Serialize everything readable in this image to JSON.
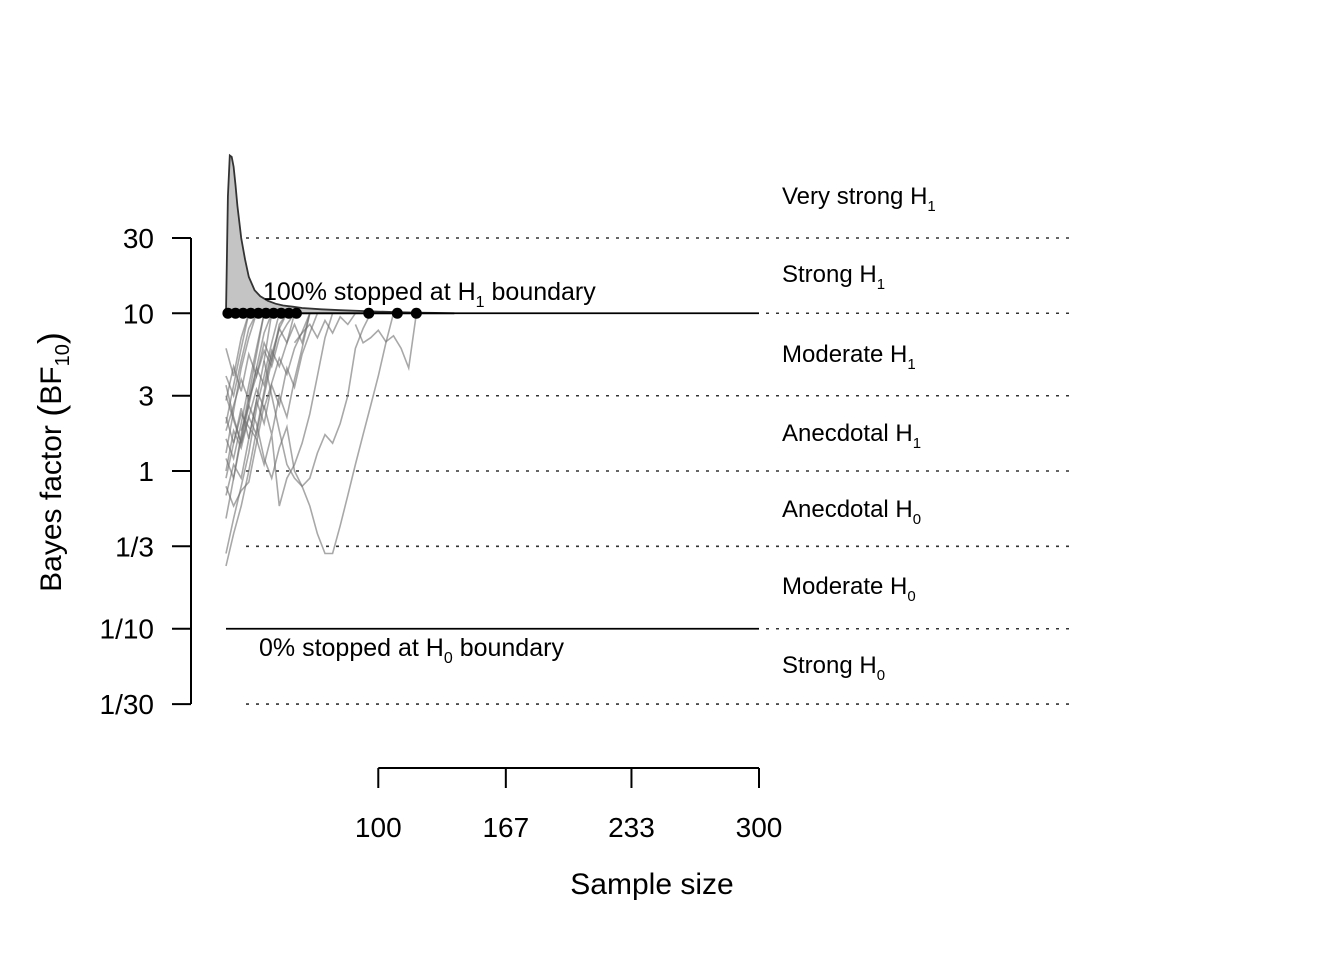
{
  "chart_data": {
    "type": "line",
    "xlabel": "Sample size",
    "ylabel": {
      "main": "Bayes factor ",
      "sym": "BF",
      "sub": "10"
    },
    "xlim": [
      50,
      300
    ],
    "x_ticks": [
      {
        "value": 100,
        "label": "100"
      },
      {
        "value": 167,
        "label": "167"
      },
      {
        "value": 233,
        "label": "233"
      },
      {
        "value": 300,
        "label": "300"
      }
    ],
    "ylim_log": [
      0.0333,
      30
    ],
    "y_ticks": [
      {
        "value": 30,
        "label": "30"
      },
      {
        "value": 10,
        "label": "10"
      },
      {
        "value": 3,
        "label": "3"
      },
      {
        "value": 1,
        "label": "1"
      },
      {
        "value": 0.3333,
        "label": "1/3"
      },
      {
        "value": 0.1,
        "label": "1/10"
      },
      {
        "value": 0.0333,
        "label": "1/30"
      }
    ],
    "evidence_labels": [
      {
        "main": "Very strong H",
        "sub": "1"
      },
      {
        "main": "Strong H",
        "sub": "1"
      },
      {
        "main": "Moderate H",
        "sub": "1"
      },
      {
        "main": "Anecdotal H",
        "sub": "1"
      },
      {
        "main": "Anecdotal H",
        "sub": "0"
      },
      {
        "main": "Moderate H",
        "sub": "0"
      },
      {
        "main": "Strong H",
        "sub": "0"
      }
    ],
    "boundaries": {
      "upper": 10,
      "lower": 0.1
    },
    "annotations": {
      "h1": {
        "pre": "100% stopped at H",
        "sub": "1",
        "post": " boundary"
      },
      "h0": {
        "pre": "0% stopped at H",
        "sub": "0",
        "post": " boundary"
      }
    },
    "stop_points_n": [
      21,
      25,
      29,
      33,
      37,
      41,
      45,
      49,
      53,
      57,
      95,
      110,
      120
    ],
    "trajectories": [
      [
        [
          20,
          1.3
        ],
        [
          24,
          2.4
        ],
        [
          28,
          4.5
        ],
        [
          32,
          7.0
        ],
        [
          36,
          10
        ]
      ],
      [
        [
          20,
          0.5
        ],
        [
          24,
          0.9
        ],
        [
          28,
          1.7
        ],
        [
          32,
          3.0
        ],
        [
          36,
          5.5
        ],
        [
          40,
          10
        ]
      ],
      [
        [
          20,
          2.0
        ],
        [
          24,
          3.5
        ],
        [
          28,
          6.0
        ],
        [
          32,
          10
        ]
      ],
      [
        [
          20,
          0.3
        ],
        [
          24,
          0.5
        ],
        [
          28,
          0.8
        ],
        [
          32,
          1.3
        ],
        [
          36,
          2.5
        ],
        [
          40,
          4.0
        ],
        [
          44,
          6.5
        ],
        [
          48,
          10
        ]
      ],
      [
        [
          20,
          4.0
        ],
        [
          24,
          3.0
        ],
        [
          28,
          5.0
        ],
        [
          32,
          8.0
        ],
        [
          36,
          10
        ]
      ],
      [
        [
          20,
          0.7
        ],
        [
          24,
          1.1
        ],
        [
          28,
          0.9
        ],
        [
          32,
          1.6
        ],
        [
          36,
          2.8
        ],
        [
          40,
          5.0
        ],
        [
          44,
          10
        ]
      ],
      [
        [
          20,
          1.6
        ],
        [
          24,
          1.2
        ],
        [
          28,
          2.0
        ],
        [
          32,
          3.5
        ],
        [
          36,
          6.0
        ],
        [
          40,
          10
        ]
      ],
      [
        [
          20,
          3.5
        ],
        [
          24,
          2.2
        ],
        [
          28,
          1.5
        ],
        [
          32,
          2.6
        ],
        [
          36,
          4.5
        ],
        [
          40,
          7.5
        ],
        [
          44,
          10
        ]
      ],
      [
        [
          20,
          6.0
        ],
        [
          24,
          4.0
        ],
        [
          28,
          7.0
        ],
        [
          32,
          10
        ]
      ],
      [
        [
          20,
          0.25
        ],
        [
          24,
          0.4
        ],
        [
          28,
          0.6
        ],
        [
          32,
          1.0
        ],
        [
          36,
          1.8
        ],
        [
          40,
          3.2
        ],
        [
          44,
          5.5
        ],
        [
          48,
          8.0
        ],
        [
          52,
          10
        ]
      ],
      [
        [
          20,
          1.0
        ],
        [
          24,
          1.8
        ],
        [
          28,
          1.4
        ],
        [
          32,
          2.2
        ],
        [
          36,
          1.7
        ],
        [
          40,
          3.0
        ],
        [
          44,
          5.0
        ],
        [
          48,
          8.5
        ],
        [
          52,
          10
        ]
      ],
      [
        [
          20,
          2.8
        ],
        [
          24,
          4.6
        ],
        [
          28,
          3.2
        ],
        [
          32,
          5.5
        ],
        [
          36,
          4.0
        ],
        [
          40,
          6.5
        ],
        [
          44,
          5.0
        ],
        [
          48,
          8.0
        ],
        [
          52,
          6.5
        ],
        [
          56,
          10
        ]
      ],
      [
        [
          20,
          0.8
        ],
        [
          24,
          0.6
        ],
        [
          28,
          0.75
        ],
        [
          32,
          0.85
        ],
        [
          36,
          1.5
        ],
        [
          40,
          2.6
        ],
        [
          44,
          1.7
        ],
        [
          48,
          3.0
        ],
        [
          52,
          2.2
        ],
        [
          56,
          3.8
        ],
        [
          60,
          6.0
        ],
        [
          64,
          10
        ]
      ],
      [
        [
          20,
          2.2
        ],
        [
          24,
          1.5
        ],
        [
          28,
          2.5
        ],
        [
          32,
          1.6
        ],
        [
          36,
          2.8
        ],
        [
          40,
          2.0
        ],
        [
          44,
          3.5
        ],
        [
          48,
          2.6
        ],
        [
          52,
          4.5
        ],
        [
          56,
          3.4
        ],
        [
          60,
          5.5
        ],
        [
          64,
          7.5
        ],
        [
          68,
          10
        ]
      ],
      [
        [
          20,
          1.2
        ],
        [
          24,
          0.9
        ],
        [
          28,
          1.6
        ],
        [
          32,
          2.8
        ],
        [
          36,
          4.5
        ],
        [
          40,
          3.5
        ],
        [
          44,
          5.8
        ],
        [
          48,
          4.6
        ],
        [
          52,
          6.5
        ],
        [
          56,
          8.5
        ],
        [
          60,
          6.5
        ],
        [
          64,
          10
        ]
      ],
      [
        [
          20,
          0.9
        ],
        [
          24,
          1.5
        ],
        [
          28,
          2.3
        ],
        [
          32,
          1.9
        ],
        [
          36,
          1.6
        ],
        [
          40,
          1.1
        ],
        [
          44,
          1.7
        ],
        [
          48,
          0.6
        ],
        [
          52,
          0.9
        ],
        [
          56,
          1.1
        ],
        [
          60,
          1.5
        ],
        [
          64,
          2.3
        ],
        [
          68,
          4.0
        ],
        [
          72,
          7.0
        ],
        [
          76,
          10
        ]
      ],
      [
        [
          20,
          1.8
        ],
        [
          24,
          2.6
        ],
        [
          28,
          3.8
        ],
        [
          32,
          2.8
        ],
        [
          36,
          4.0
        ],
        [
          40,
          5.8
        ],
        [
          44,
          4.6
        ],
        [
          48,
          7.0
        ],
        [
          52,
          8.5
        ],
        [
          56,
          10
        ]
      ],
      [
        [
          20,
          3.0
        ],
        [
          24,
          2.1
        ],
        [
          28,
          1.5
        ],
        [
          32,
          2.2
        ],
        [
          36,
          3.3
        ],
        [
          40,
          2.5
        ],
        [
          44,
          3.6
        ],
        [
          48,
          5.2
        ],
        [
          52,
          4.1
        ],
        [
          56,
          6.0
        ],
        [
          60,
          7.6
        ],
        [
          64,
          10
        ]
      ],
      [
        [
          28,
          1.8
        ],
        [
          32,
          2.6
        ],
        [
          36,
          2.0
        ],
        [
          40,
          1.2
        ],
        [
          44,
          0.9
        ],
        [
          48,
          1.4
        ],
        [
          52,
          1.9
        ],
        [
          56,
          1.0
        ],
        [
          60,
          0.8
        ],
        [
          64,
          0.9
        ],
        [
          68,
          1.3
        ],
        [
          72,
          1.7
        ],
        [
          76,
          1.5
        ],
        [
          80,
          2.0
        ],
        [
          84,
          3.0
        ],
        [
          88,
          6.0
        ],
        [
          92,
          8.0
        ],
        [
          96,
          10
        ]
      ],
      [
        [
          40,
          5.0
        ],
        [
          44,
          3.0
        ],
        [
          48,
          1.8
        ],
        [
          52,
          1.1
        ],
        [
          56,
          0.9
        ],
        [
          60,
          0.8
        ],
        [
          64,
          0.6
        ],
        [
          68,
          0.4
        ],
        [
          72,
          0.3
        ],
        [
          76,
          0.3
        ],
        [
          80,
          0.45
        ],
        [
          84,
          0.7
        ],
        [
          88,
          1.1
        ],
        [
          92,
          1.7
        ],
        [
          96,
          2.6
        ],
        [
          100,
          4.0
        ],
        [
          104,
          6.5
        ],
        [
          108,
          10
        ]
      ],
      [
        [
          56,
          6.5
        ],
        [
          60,
          7.5
        ],
        [
          64,
          8.5
        ],
        [
          68,
          7.0
        ],
        [
          72,
          9.0
        ],
        [
          76,
          7.5
        ],
        [
          80,
          9.5
        ],
        [
          84,
          8.5
        ],
        [
          88,
          10
        ]
      ],
      [
        [
          88,
          8.5
        ],
        [
          92,
          6.5
        ],
        [
          96,
          7.0
        ],
        [
          100,
          7.8
        ],
        [
          104,
          6.6
        ],
        [
          108,
          7.2
        ],
        [
          112,
          6.0
        ],
        [
          116,
          4.5
        ],
        [
          120,
          10
        ]
      ]
    ],
    "density": {
      "x": [
        20,
        21,
        22,
        23,
        24,
        25,
        26,
        27,
        28,
        30,
        32,
        35,
        38,
        42,
        46,
        50,
        55,
        60,
        70,
        80,
        90,
        100,
        110,
        120,
        130,
        140
      ],
      "y": [
        10,
        55,
        100,
        98,
        85,
        65,
        48,
        38,
        30,
        22,
        17,
        14,
        12.8,
        12.0,
        11.5,
        11.2,
        11.0,
        10.8,
        10.6,
        10.45,
        10.35,
        10.25,
        10.15,
        10.1,
        10.05,
        10
      ]
    }
  }
}
